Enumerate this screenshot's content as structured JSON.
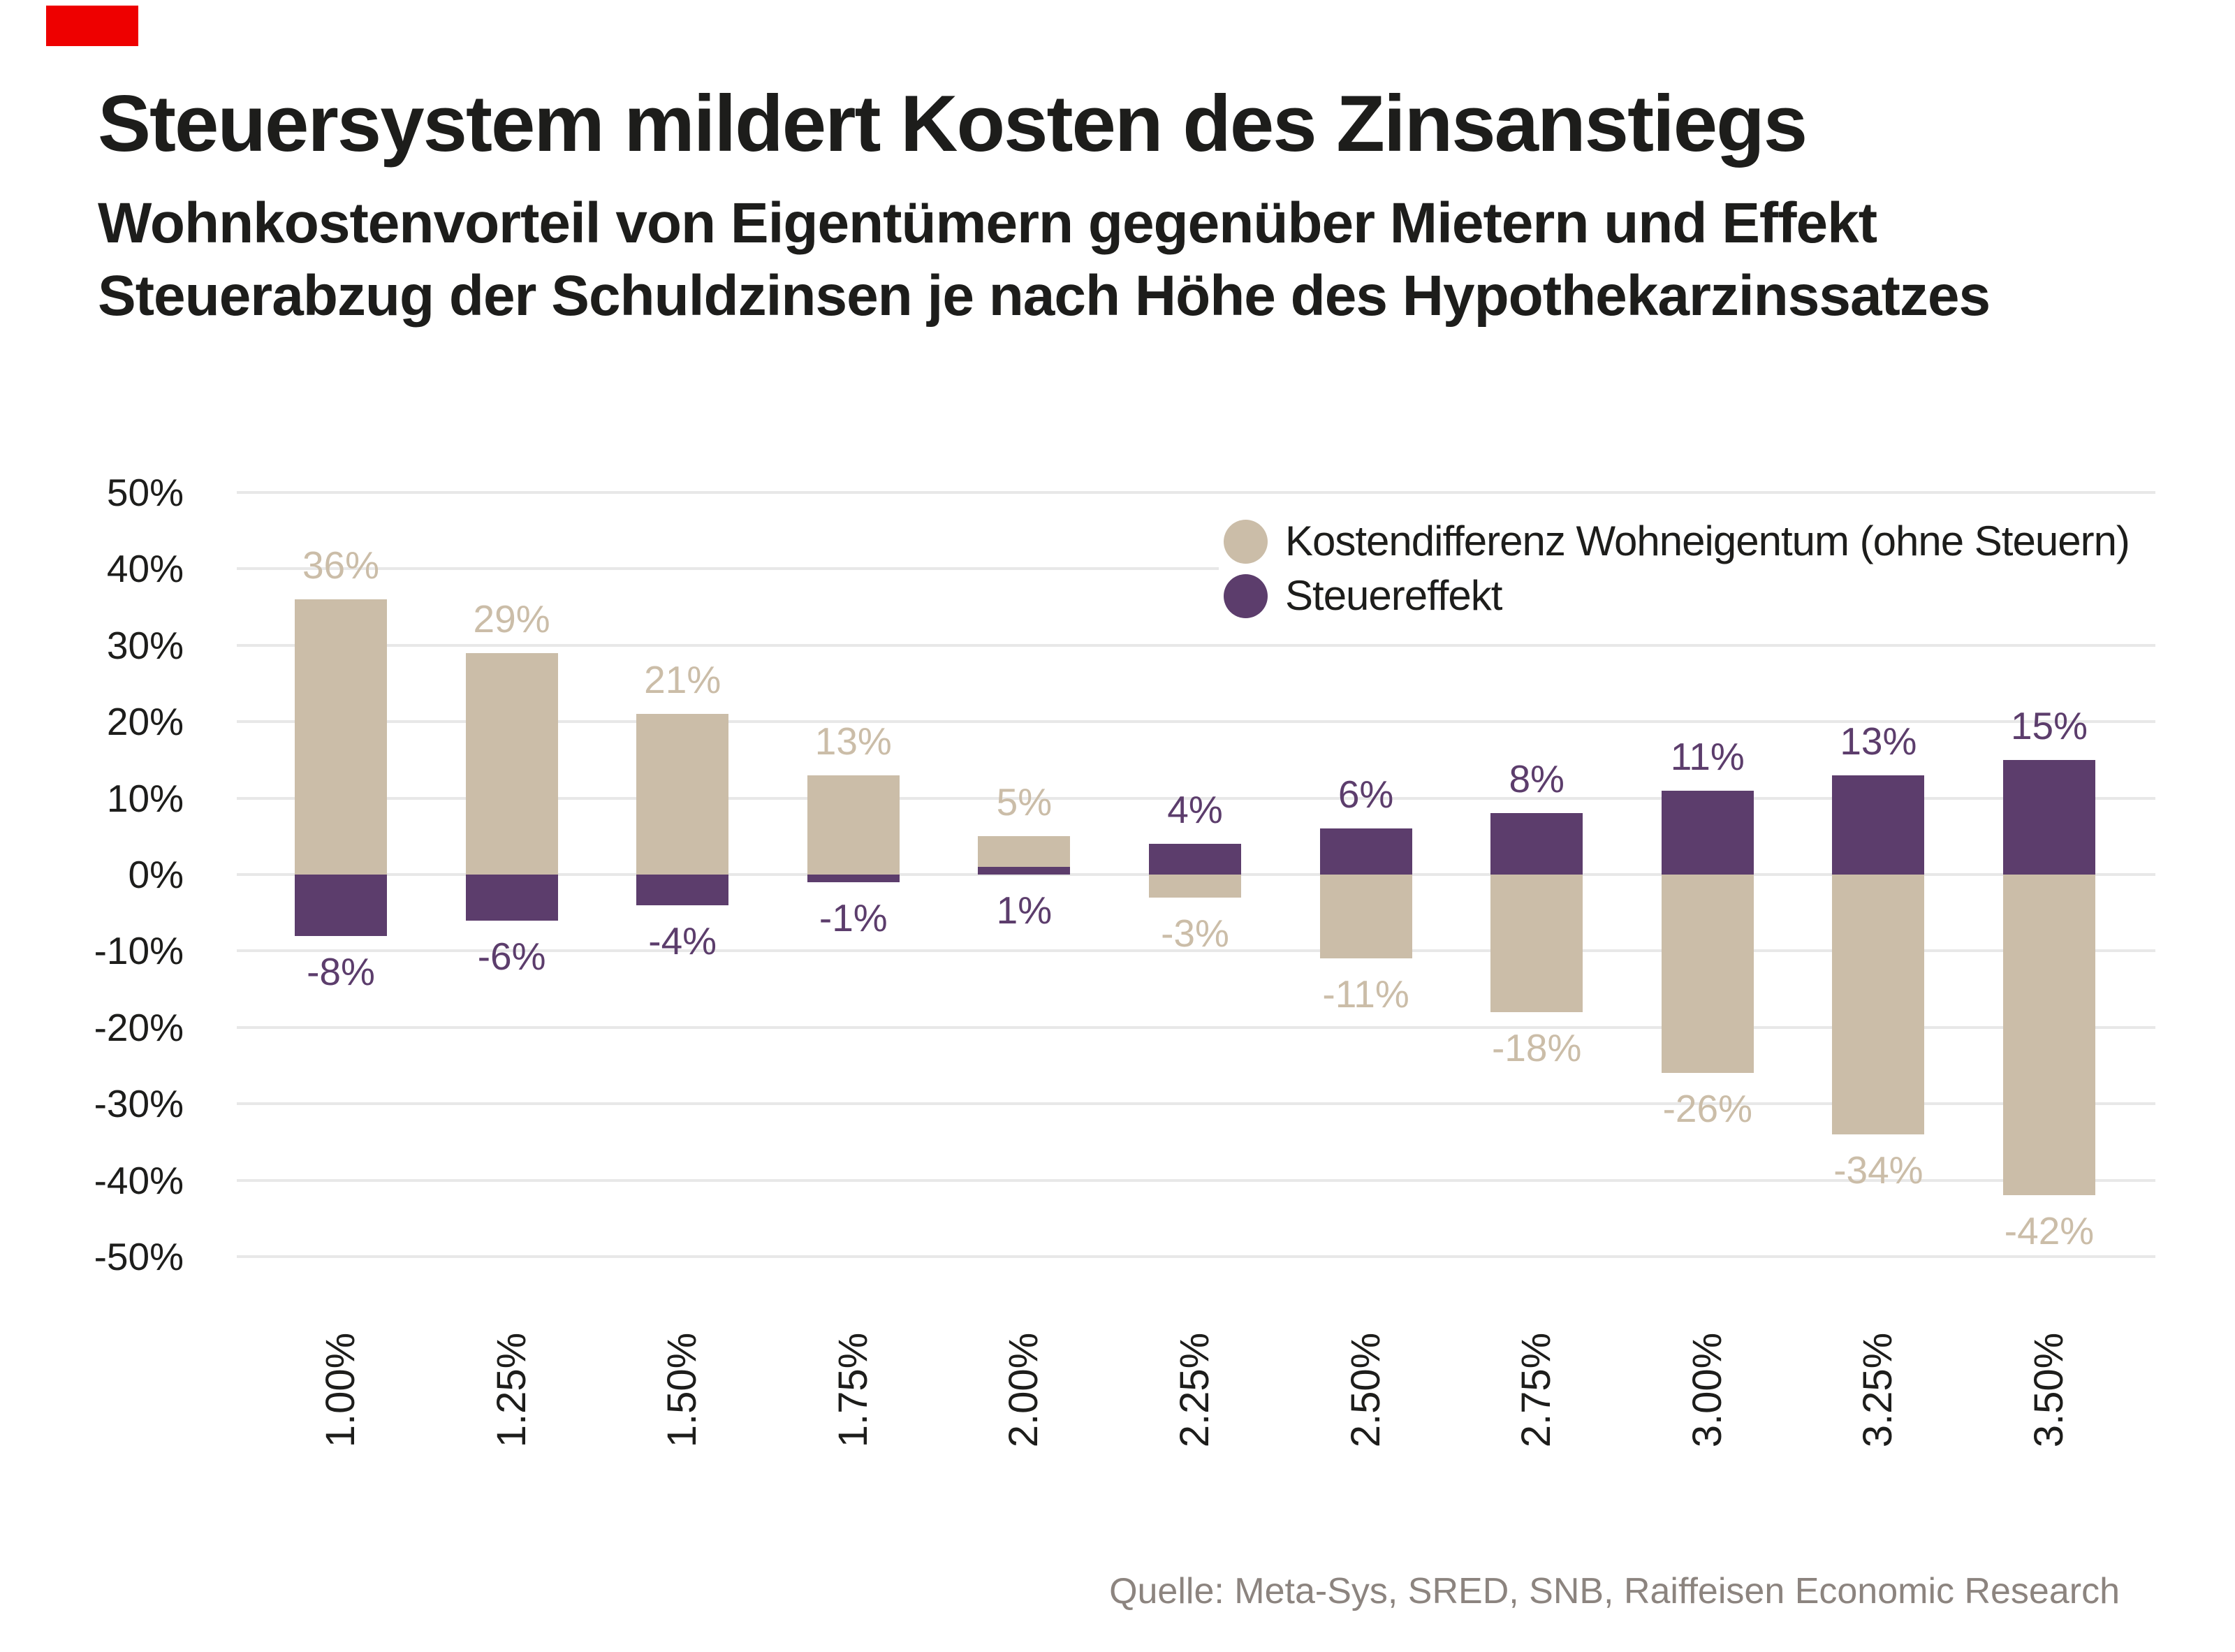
{
  "header": {
    "brand_color": "#ee0000",
    "title": "Steuersystem mildert Kosten des Zinsanstiegs",
    "subtitle_line1": "Wohnkostenvorteil von Eigentümern gegenüber Mietern und Effekt",
    "subtitle_line2": "Steuerabzug der Schuldzinsen je nach Höhe des Hypothekarzinssatzes"
  },
  "legend": {
    "items": [
      {
        "label": "Kostendifferenz Wohneigentum (ohne Steuern)",
        "color": "#CBBDA8"
      },
      {
        "label": "Steuereffekt",
        "color": "#5C3D6C"
      }
    ]
  },
  "source": "Quelle: Meta-Sys, SRED, SNB, Raiffeisen Economic Research",
  "chart_data": {
    "type": "bar",
    "title": "Steuersystem mildert Kosten des Zinsanstiegs",
    "subtitle": "Wohnkostenvorteil von Eigentümern gegenüber Mietern und Effekt Steuerabzug der Schuldzinsen je nach Höhe des Hypothekarzinssatzes",
    "categories": [
      "1.00%",
      "1.25%",
      "1.50%",
      "1.75%",
      "2.00%",
      "2.25%",
      "2.50%",
      "2.75%",
      "3.00%",
      "3.25%",
      "3.50%"
    ],
    "series": [
      {
        "name": "Kostendifferenz Wohneigentum (ohne Steuern)",
        "color": "#CBBDA8",
        "values": [
          36,
          29,
          21,
          13,
          5,
          -3,
          -11,
          -18,
          -26,
          -34,
          -42
        ],
        "labels": [
          "36%",
          "29%",
          "21%",
          "13%",
          "5%",
          "-3%",
          "-11%",
          "-18%",
          "-26%",
          "-34%",
          "-42%"
        ]
      },
      {
        "name": "Steuereffekt",
        "color": "#5C3D6C",
        "values": [
          -8,
          -6,
          -4,
          -1,
          1,
          4,
          6,
          8,
          11,
          13,
          15
        ],
        "labels": [
          "-8%",
          "-6%",
          "-4%",
          "-1%",
          "1%",
          "4%",
          "6%",
          "8%",
          "11%",
          "13%",
          "15%"
        ]
      }
    ],
    "yticks": [
      50,
      40,
      30,
      20,
      10,
      0,
      -10,
      -20,
      -30,
      -40,
      -50
    ],
    "ytick_labels": [
      "50%",
      "40%",
      "30%",
      "20%",
      "10%",
      "0%",
      "-10%",
      "-20%",
      "-30%",
      "-40%",
      "-50%"
    ],
    "ylim": [
      -50,
      50
    ],
    "xlabel": "",
    "ylabel": "",
    "grid": true,
    "bar_mode": "overlap",
    "legend_position": "top-right",
    "background": "#ffffff",
    "gridline_color": "#e8e8e8"
  }
}
